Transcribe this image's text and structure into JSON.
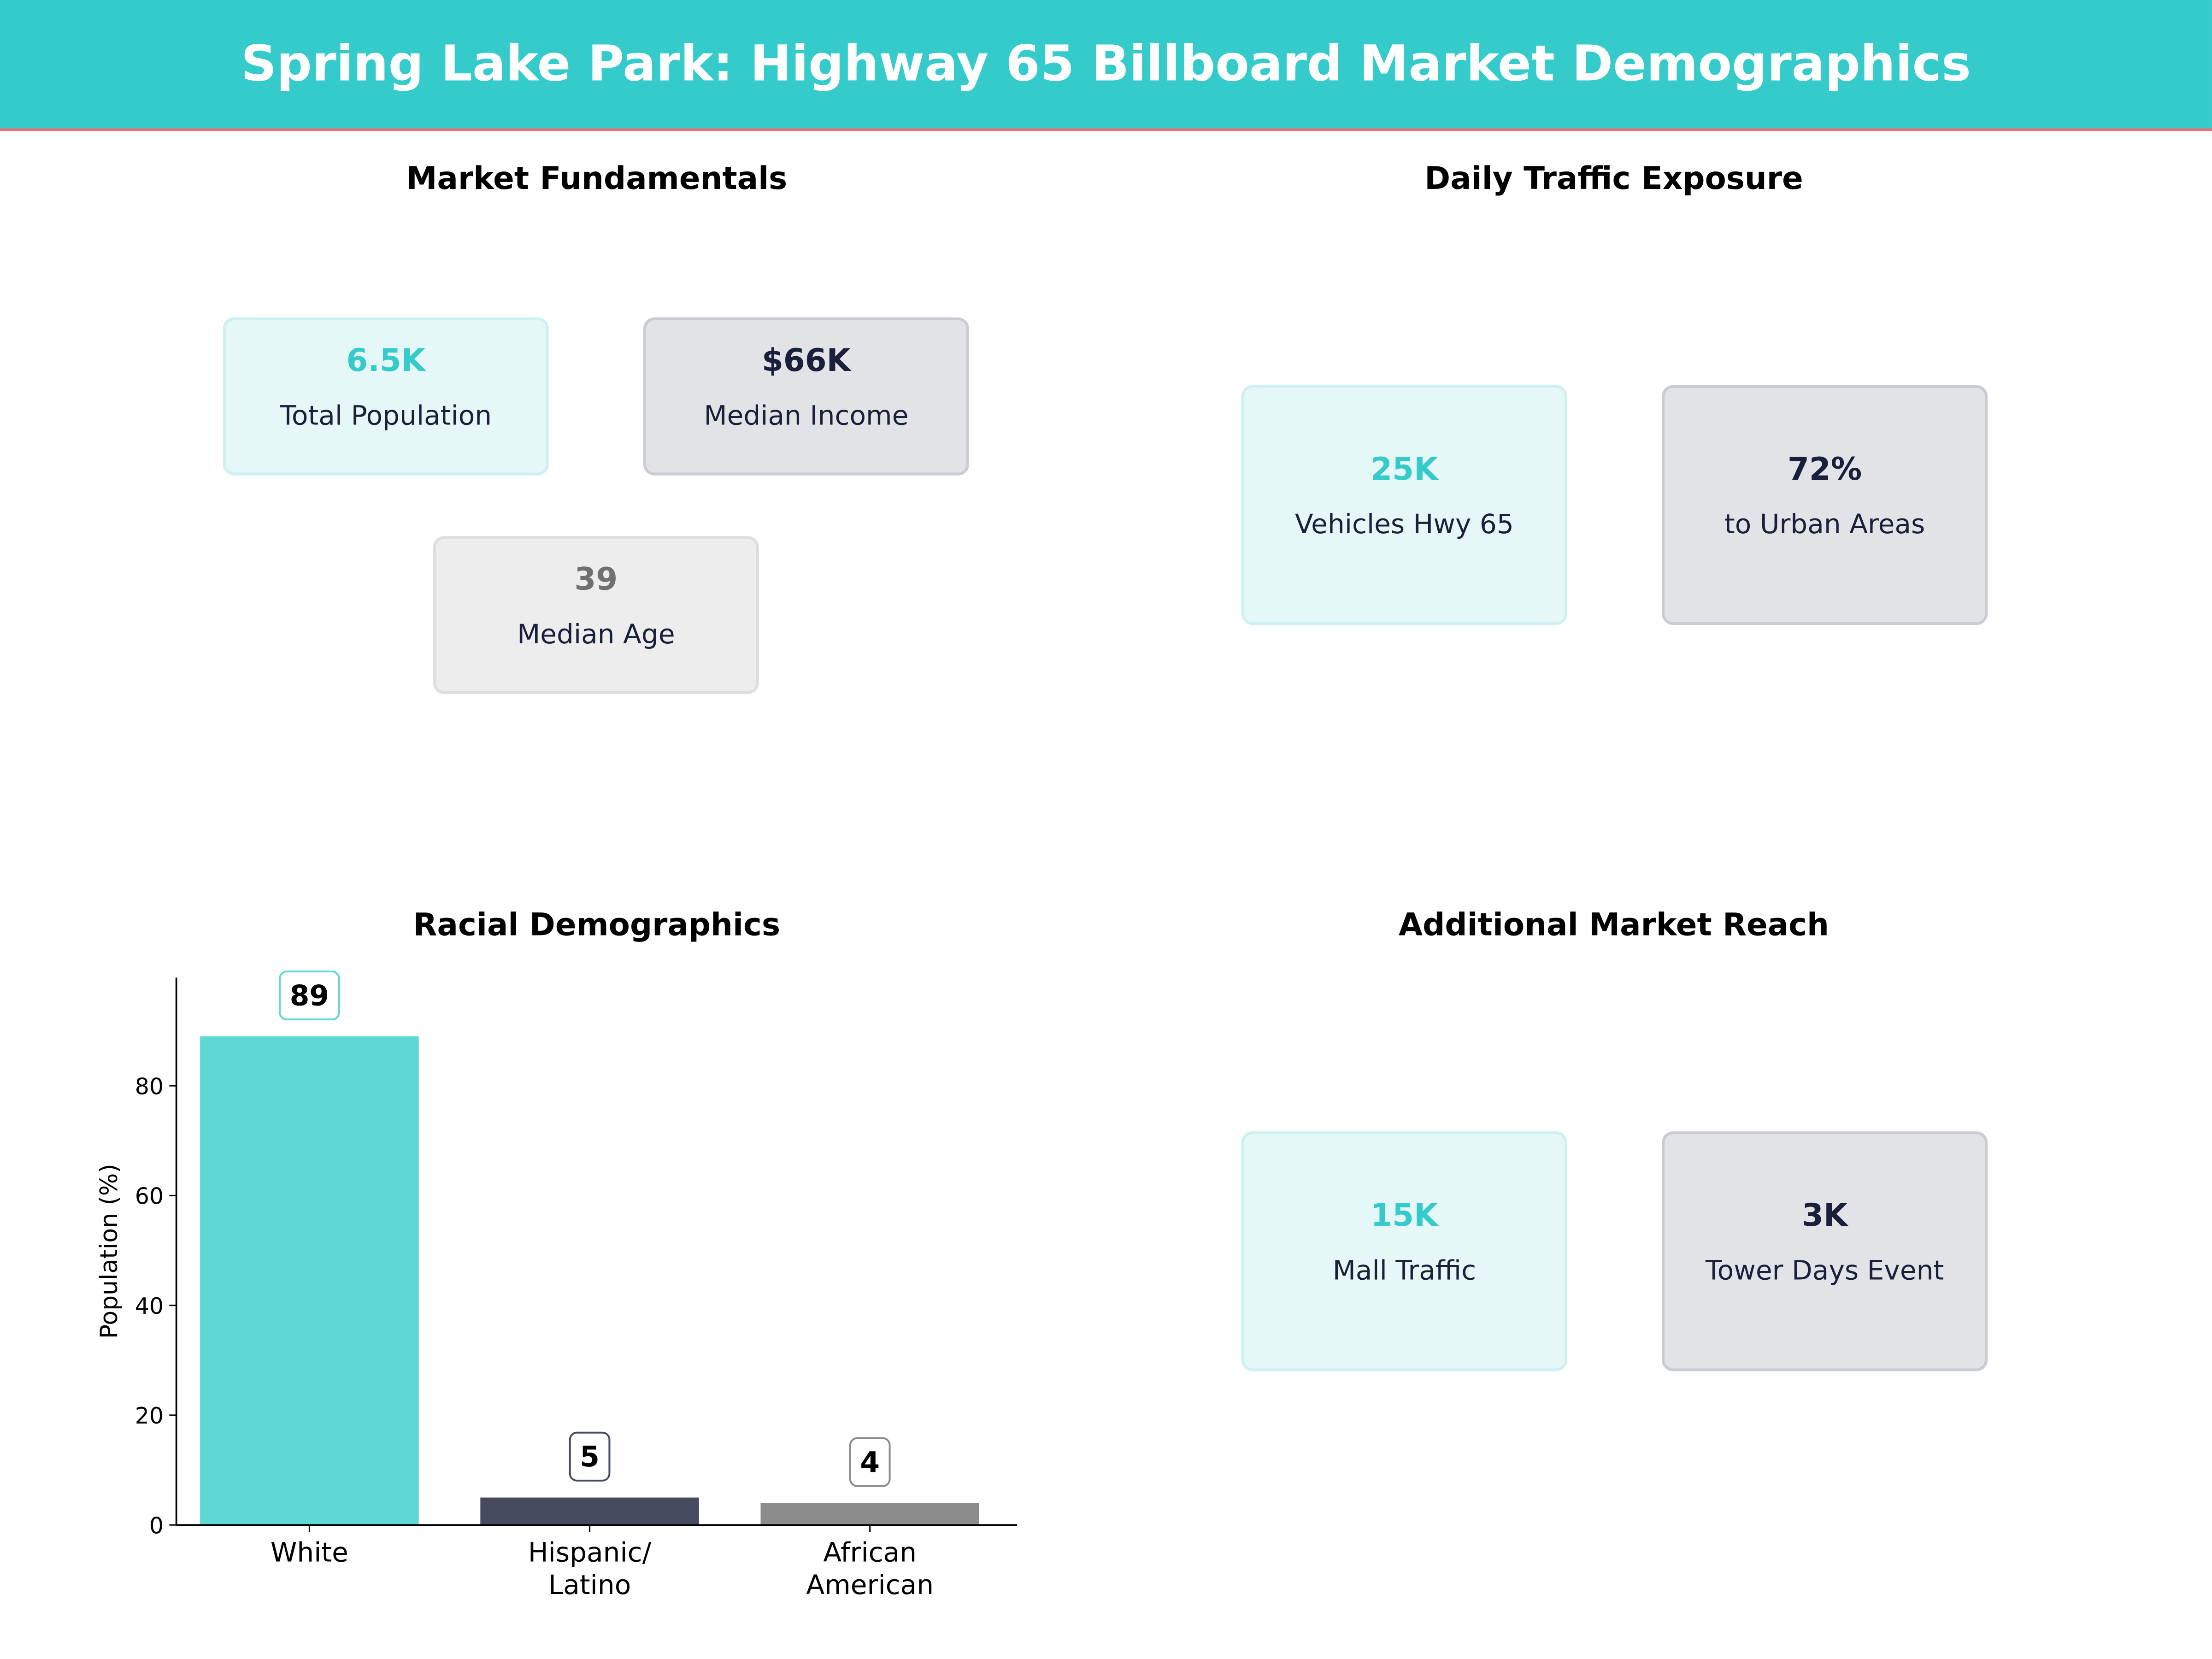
{
  "title": "Spring Lake Park: Highway 65 Billboard Market Demographics",
  "colors": {
    "header": "#35cbcb",
    "accent_line": "#e8707a",
    "teal": "#35cbcb",
    "navy": "#1a1f3a",
    "gray": "#707070"
  },
  "market_fundamentals": {
    "title": "Market Fundamentals",
    "cards": [
      {
        "value": "6.5K",
        "label": "Total Population"
      },
      {
        "value": "$66K",
        "label": "Median Income"
      },
      {
        "value": "39",
        "label": "Median Age"
      }
    ]
  },
  "traffic": {
    "title": "Daily Traffic Exposure",
    "cards": [
      {
        "value": "25K",
        "label": "Vehicles Hwy 65"
      },
      {
        "value": "72%",
        "label": "to Urban Areas"
      }
    ]
  },
  "reach": {
    "title": "Additional Market Reach",
    "cards": [
      {
        "value": "15K",
        "label": "Mall Traffic"
      },
      {
        "value": "3K",
        "label": "Tower Days Event"
      }
    ]
  },
  "chart_data": {
    "type": "bar",
    "title": "Racial Demographics",
    "categories": [
      [
        "White"
      ],
      [
        "Hispanic/",
        "Latino"
      ],
      [
        "African",
        "American"
      ]
    ],
    "values": [
      89,
      5,
      4
    ],
    "data_labels": [
      "89",
      "5",
      "4"
    ],
    "colors": [
      "#5dd8d5",
      "#464b60",
      "#8c8c8c"
    ],
    "xlabel": "",
    "ylabel": "Population (%)",
    "ylim": [
      0,
      99.7
    ],
    "yticks": [
      0,
      20,
      40,
      60,
      80
    ],
    "grid": false
  }
}
